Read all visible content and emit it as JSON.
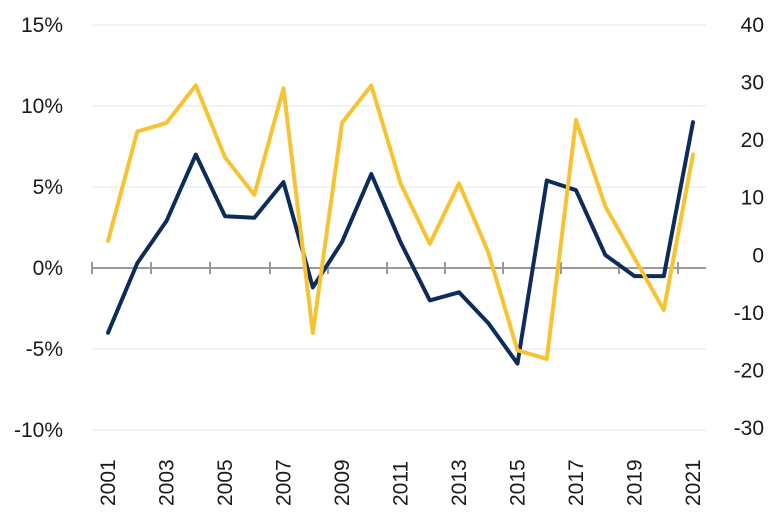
{
  "chart_data": {
    "type": "line",
    "title": "",
    "xlabel": "",
    "ylabel": "",
    "y2label": "",
    "grid": true,
    "x": [
      2001,
      2002,
      2003,
      2004,
      2005,
      2006,
      2007,
      2008,
      2009,
      2010,
      2011,
      2012,
      2013,
      2014,
      2015,
      2016,
      2017,
      2018,
      2019,
      2020,
      2021
    ],
    "x_tick_labels": [
      "2001",
      "2003",
      "2005",
      "2007",
      "2009",
      "2011",
      "2013",
      "2015",
      "2017",
      "2019",
      "2021"
    ],
    "y_left": {
      "min": -10,
      "max": 15,
      "ticks": [
        15,
        10,
        5,
        0,
        -5,
        -10
      ],
      "tick_labels": [
        "15%",
        "10%",
        "5%",
        "0%",
        "-5%",
        "-10%"
      ]
    },
    "y_right": {
      "min": -30,
      "max": 40,
      "ticks": [
        40,
        30,
        20,
        10,
        0,
        -10,
        -20,
        -30
      ],
      "tick_labels": [
        "40",
        "30",
        "20",
        "10",
        "0",
        "-10",
        "-20",
        "-30"
      ]
    },
    "series": [
      {
        "axis": "left",
        "color": "#0d2c5a",
        "values": [
          -4.0,
          0.3,
          2.9,
          7.0,
          3.2,
          3.1,
          5.3,
          -1.2,
          1.6,
          5.8,
          1.6,
          -2.0,
          -1.5,
          -3.4,
          -5.9,
          5.4,
          4.8,
          0.8,
          -0.5,
          -0.5,
          9.0
        ]
      },
      {
        "axis": "right",
        "color": "#f6c332",
        "values": [
          2.5,
          21.5,
          23.0,
          29.5,
          17.0,
          10.5,
          29.0,
          -13.5,
          23.0,
          29.5,
          12.5,
          2.0,
          12.5,
          0.5,
          -16.5,
          -18.0,
          23.5,
          8.5,
          -0.5,
          -9.5,
          17.5
        ]
      }
    ]
  }
}
